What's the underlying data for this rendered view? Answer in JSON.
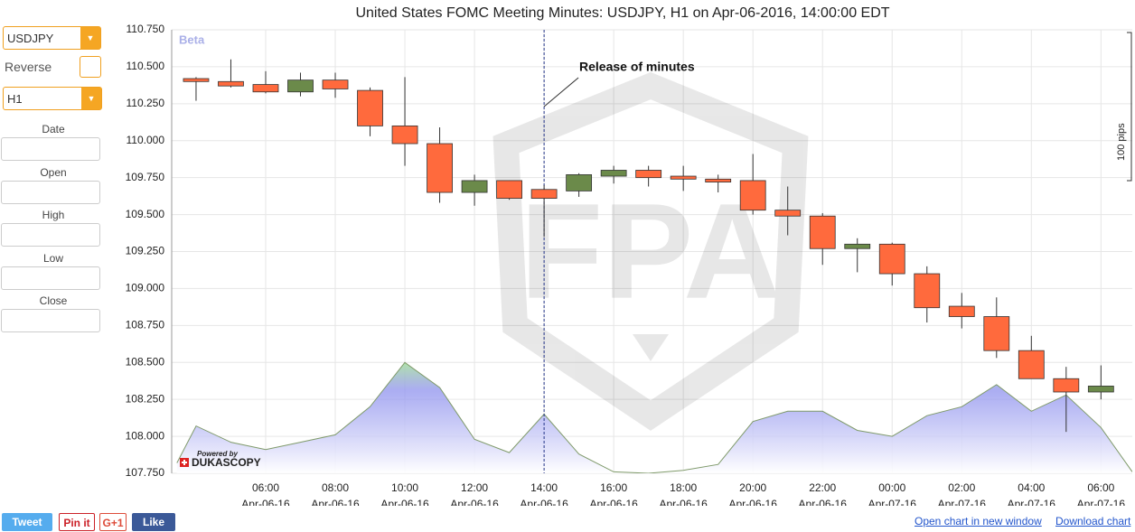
{
  "sidebar": {
    "symbol": "USDJPY",
    "reverse_label": "Reverse",
    "timeframe": "H1",
    "fields": [
      "Date",
      "Open",
      "High",
      "Low",
      "Close"
    ]
  },
  "chart_data": {
    "type": "candlestick",
    "title": "United States FOMC Meeting Minutes: USDJPY, H1 on Apr-06-2016, 14:00:00 EDT",
    "badge": "Beta",
    "watermark": "FPA",
    "credit_top": "Powered by",
    "credit_brand": "DUKASCOPY",
    "range_note": "100 pips",
    "annotation": {
      "x": 14,
      "text": "Release of minutes"
    },
    "x": [
      4,
      5,
      6,
      7,
      8,
      9,
      10,
      11,
      12,
      13,
      14,
      15,
      16,
      17,
      18,
      19,
      20,
      21,
      22,
      23,
      24,
      25,
      26,
      27,
      28,
      29,
      30
    ],
    "open": [
      110.42,
      110.4,
      110.38,
      110.33,
      110.41,
      110.34,
      110.1,
      109.98,
      109.65,
      109.73,
      109.67,
      109.66,
      109.76,
      109.8,
      109.76,
      109.74,
      109.73,
      109.53,
      109.49,
      109.27,
      109.3,
      109.1,
      108.88,
      108.81,
      108.58,
      108.39,
      108.3
    ],
    "high": [
      110.43,
      110.55,
      110.47,
      110.46,
      110.46,
      110.36,
      110.43,
      110.09,
      109.77,
      109.73,
      109.7,
      109.78,
      109.83,
      109.83,
      109.83,
      109.77,
      109.91,
      109.69,
      109.51,
      109.34,
      109.31,
      109.15,
      108.97,
      108.94,
      108.68,
      108.47,
      108.48
    ],
    "low": [
      110.27,
      110.36,
      110.32,
      110.3,
      110.29,
      110.03,
      109.83,
      109.58,
      109.56,
      109.6,
      109.35,
      109.62,
      109.71,
      109.69,
      109.66,
      109.65,
      109.5,
      109.36,
      109.16,
      109.11,
      109.02,
      108.77,
      108.73,
      108.53,
      108.39,
      108.03,
      108.25
    ],
    "close": [
      110.4,
      110.37,
      110.33,
      110.41,
      110.35,
      110.1,
      109.98,
      109.65,
      109.73,
      109.61,
      109.61,
      109.77,
      109.8,
      109.75,
      109.74,
      109.72,
      109.53,
      109.49,
      109.27,
      109.3,
      109.1,
      108.87,
      108.81,
      108.58,
      108.39,
      108.3,
      108.34
    ],
    "up_color": "#6b8a4a",
    "down_color": "#ff6a3d",
    "area": {
      "color": "#8f92ee",
      "line_color": "#7f9a6a",
      "x": [
        3.45,
        4,
        5,
        6,
        7,
        8,
        9,
        10,
        11,
        12,
        13,
        14,
        15,
        16,
        17,
        18,
        19,
        20,
        21,
        22,
        23,
        24,
        25,
        26,
        27,
        28,
        29,
        30,
        30.9
      ],
      "values": [
        107.82,
        108.07,
        107.96,
        107.91,
        107.96,
        108.01,
        108.2,
        108.5,
        108.33,
        107.98,
        107.89,
        108.15,
        107.88,
        107.76,
        107.75,
        107.77,
        107.81,
        108.1,
        108.17,
        108.17,
        108.04,
        108.0,
        108.14,
        108.2,
        108.35,
        108.17,
        108.28,
        108.06,
        107.76
      ]
    },
    "xlim": [
      3.3,
      30.9
    ],
    "ylim": [
      107.75,
      110.75
    ],
    "yticks": [
      {
        "value": 107.75,
        "label": "107.750"
      },
      {
        "value": 108,
        "label": "108.000"
      },
      {
        "value": 108.25,
        "label": "108.250"
      },
      {
        "value": 108.5,
        "label": "108.500"
      },
      {
        "value": 108.75,
        "label": "108.750"
      },
      {
        "value": 109,
        "label": "109.000"
      },
      {
        "value": 109.25,
        "label": "109.250"
      },
      {
        "value": 109.5,
        "label": "109.500"
      },
      {
        "value": 109.75,
        "label": "109.750"
      },
      {
        "value": 110,
        "label": "110.000"
      },
      {
        "value": 110.25,
        "label": "110.250"
      },
      {
        "value": 110.5,
        "label": "110.500"
      },
      {
        "value": 110.75,
        "label": "110.750"
      }
    ],
    "xticks": [
      {
        "value": 6,
        "label": "06:00",
        "date": "Apr-06-16"
      },
      {
        "value": 8,
        "label": "08:00",
        "date": "Apr-06-16"
      },
      {
        "value": 10,
        "label": "10:00",
        "date": "Apr-06-16"
      },
      {
        "value": 12,
        "label": "12:00",
        "date": "Apr-06-16"
      },
      {
        "value": 14,
        "label": "14:00",
        "date": "Apr-06-16"
      },
      {
        "value": 16,
        "label": "16:00",
        "date": "Apr-06-16"
      },
      {
        "value": 18,
        "label": "18:00",
        "date": "Apr-06-16"
      },
      {
        "value": 20,
        "label": "20:00",
        "date": "Apr-06-16"
      },
      {
        "value": 22,
        "label": "22:00",
        "date": "Apr-06-16"
      },
      {
        "value": 24,
        "label": "00:00",
        "date": "Apr-07-16"
      },
      {
        "value": 26,
        "label": "02:00",
        "date": "Apr-07-16"
      },
      {
        "value": 28,
        "label": "04:00",
        "date": "Apr-07-16"
      },
      {
        "value": 30,
        "label": "06:00",
        "date": "Apr-07-16"
      }
    ],
    "grid": true
  },
  "footer": {
    "buttons": [
      "Tweet",
      "Pin it",
      "G+1",
      "Like"
    ],
    "links": [
      "Open chart in new window",
      "Download chart"
    ]
  }
}
